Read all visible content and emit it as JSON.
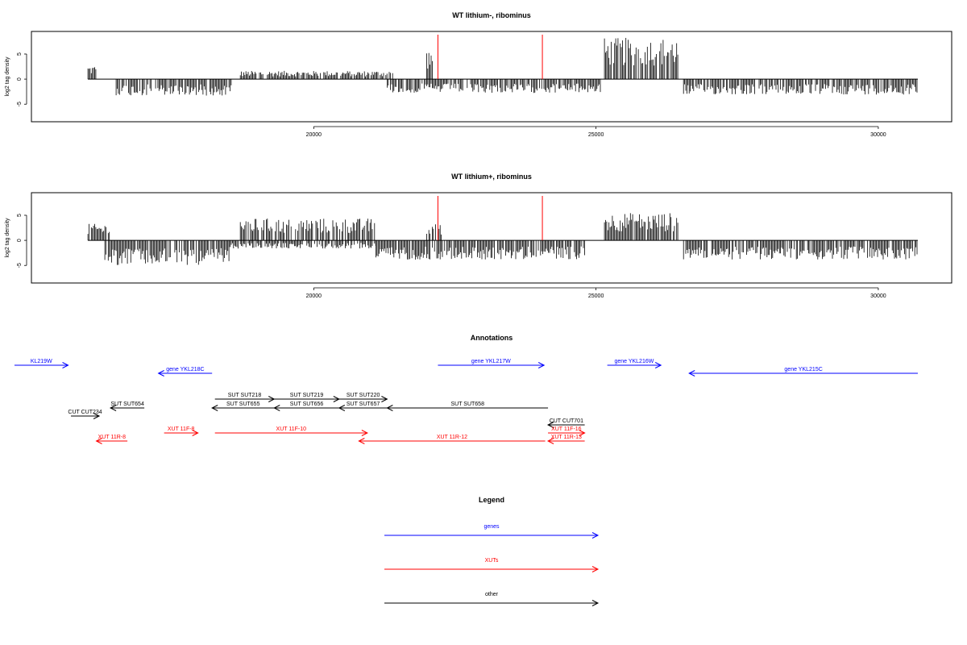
{
  "colors": {
    "gene": "#0000ff",
    "xut": "#ff0000",
    "other": "#000000",
    "marker": "#ff0000",
    "signal": "#000000"
  },
  "chart_data": [
    {
      "type": "bar",
      "title": "WT lithium-, ribominus",
      "xlabel": "",
      "ylabel": "log2 tag density",
      "xlim": [
        15000,
        31300
      ],
      "ylim": [
        -8.5,
        9.5
      ],
      "x_ticks": [
        20000,
        25000,
        30000
      ],
      "y_ticks": [
        -5,
        0,
        5
      ],
      "markers": [
        22200,
        24050
      ],
      "forward_density": [
        {
          "start": 16000,
          "end": 16150,
          "level": 2.5
        },
        {
          "start": 18700,
          "end": 21400,
          "level": 1.5
        },
        {
          "start": 22000,
          "end": 22100,
          "level": 5.5
        },
        {
          "start": 25150,
          "end": 26450,
          "level": 7.5
        }
      ],
      "reverse_density": [
        {
          "start": 16500,
          "end": 18550,
          "level": -3.0
        },
        {
          "start": 21300,
          "end": 25100,
          "level": -2.5
        },
        {
          "start": 26550,
          "end": 30700,
          "level": -2.8
        }
      ]
    },
    {
      "type": "bar",
      "title": "WT lithium+, ribominus",
      "xlabel": "",
      "ylabel": "log2 tag density",
      "xlim": [
        15000,
        31300
      ],
      "ylim": [
        -8.5,
        9.5
      ],
      "x_ticks": [
        20000,
        25000,
        30000
      ],
      "y_ticks": [
        -5,
        0,
        5
      ],
      "markers": [
        22200,
        24050
      ],
      "forward_density": [
        {
          "start": 16000,
          "end": 16400,
          "level": 3.0
        },
        {
          "start": 18700,
          "end": 21100,
          "level": 4.0
        },
        {
          "start": 22000,
          "end": 22300,
          "level": 3.0
        },
        {
          "start": 25150,
          "end": 26450,
          "level": 5.0
        }
      ],
      "reverse_density": [
        {
          "start": 16300,
          "end": 18500,
          "level": -4.5
        },
        {
          "start": 18500,
          "end": 21100,
          "level": -1.5
        },
        {
          "start": 21100,
          "end": 24800,
          "level": -3.5
        },
        {
          "start": 26550,
          "end": 30700,
          "level": -3.5
        }
      ]
    }
  ],
  "annotations": {
    "title": "Annotations",
    "features": [
      {
        "label": "KL219W",
        "type": "gene",
        "strand": "+",
        "start": 14700,
        "end": 15650,
        "row": 0
      },
      {
        "label": "gene YKL218C",
        "type": "gene",
        "strand": "-",
        "start": 17250,
        "end": 18200,
        "row": 1
      },
      {
        "label": "gene YKL217W",
        "type": "gene",
        "strand": "+",
        "start": 22200,
        "end": 24080,
        "row": 0
      },
      {
        "label": "gene YKL216W",
        "type": "gene",
        "strand": "+",
        "start": 25200,
        "end": 26150,
        "row": 0
      },
      {
        "label": "gene YKL215C",
        "type": "gene",
        "strand": "-",
        "start": 26650,
        "end": 30700,
        "row": 1
      },
      {
        "label": "SUT SUT218",
        "type": "other",
        "strand": "+",
        "start": 18250,
        "end": 19300,
        "row": 2
      },
      {
        "label": "SUT SUT219",
        "type": "other",
        "strand": "+",
        "start": 19300,
        "end": 20450,
        "row": 2
      },
      {
        "label": "SUT SUT220",
        "type": "other",
        "strand": "+",
        "start": 20450,
        "end": 21300,
        "row": 2
      },
      {
        "label": "SUT SUT654",
        "type": "other",
        "strand": "-",
        "start": 16400,
        "end": 17000,
        "row": 3
      },
      {
        "label": "SUT SUT655",
        "type": "other",
        "strand": "-",
        "start": 18200,
        "end": 19300,
        "row": 3
      },
      {
        "label": "SUT SUT656",
        "type": "other",
        "strand": "-",
        "start": 19300,
        "end": 20450,
        "row": 3
      },
      {
        "label": "SUT SUT657",
        "type": "other",
        "strand": "-",
        "start": 20450,
        "end": 21300,
        "row": 3
      },
      {
        "label": "SUT SUT658",
        "type": "other",
        "strand": "-",
        "start": 21300,
        "end": 24150,
        "row": 3
      },
      {
        "label": "CUT CUT234",
        "type": "other",
        "strand": "+",
        "start": 15700,
        "end": 16200,
        "row": 4
      },
      {
        "label": "CUT CUT701",
        "type": "other",
        "strand": "-",
        "start": 24150,
        "end": 24800,
        "row": 5
      },
      {
        "label": "XUT 11F-8",
        "type": "xut",
        "strand": "+",
        "start": 17350,
        "end": 17950,
        "row": 6
      },
      {
        "label": "XUT 11F-10",
        "type": "xut",
        "strand": "+",
        "start": 18250,
        "end": 20950,
        "row": 6
      },
      {
        "label": "XUT 11F-16",
        "type": "xut",
        "strand": "+",
        "start": 24150,
        "end": 24800,
        "row": 6
      },
      {
        "label": "XUT 11R-8",
        "type": "xut",
        "strand": "-",
        "start": 16150,
        "end": 16700,
        "row": 7
      },
      {
        "label": "XUT 11R-12",
        "type": "xut",
        "strand": "-",
        "start": 20800,
        "end": 24100,
        "row": 7
      },
      {
        "label": "XUT 11R-13",
        "type": "xut",
        "strand": "-",
        "start": 24150,
        "end": 24800,
        "row": 7
      }
    ]
  },
  "legend": {
    "title": "Legend",
    "items": [
      {
        "label": "genes",
        "type": "gene"
      },
      {
        "label": "XUTs",
        "type": "xut"
      },
      {
        "label": "other",
        "type": "other"
      }
    ]
  }
}
